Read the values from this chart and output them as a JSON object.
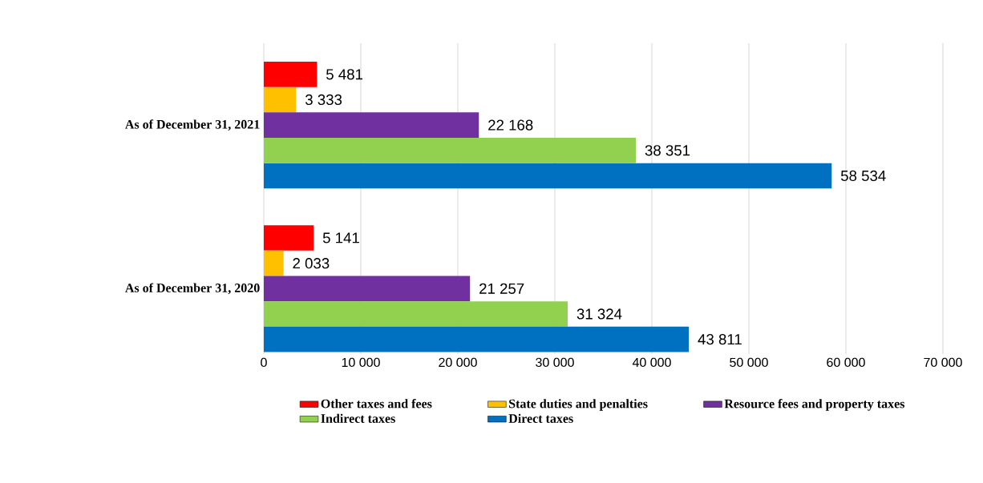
{
  "chart_data": {
    "type": "bar",
    "orientation": "horizontal",
    "categories": [
      "As of December 31, 2021",
      "As of December 31, 2020"
    ],
    "series": [
      {
        "name": "Other taxes and fees",
        "color": "#ff0000",
        "values": [
          5481,
          5141
        ],
        "value_labels": [
          "5 481",
          "5 141"
        ]
      },
      {
        "name": "State duties and penalties",
        "color": "#ffc000",
        "values": [
          3333,
          2033
        ],
        "value_labels": [
          "3 333",
          "2 033"
        ]
      },
      {
        "name": "Resource fees and property taxes",
        "color": "#7030a0",
        "values": [
          22168,
          21257
        ],
        "value_labels": [
          "22 168",
          "21 257"
        ]
      },
      {
        "name": "Indirect taxes",
        "color": "#92d050",
        "values": [
          38351,
          31324
        ],
        "value_labels": [
          "38 351",
          "31 324"
        ]
      },
      {
        "name": "Direct taxes",
        "color": "#0070c0",
        "values": [
          58534,
          43811
        ],
        "value_labels": [
          "58 534",
          "43 811"
        ]
      }
    ],
    "xlim": [
      0,
      70000
    ],
    "xticks": [
      0,
      {
        "value": 10000,
        "label": "10 000"
      },
      {
        "value": 20000,
        "label": "20 000"
      },
      {
        "value": 30000,
        "label": "30 000"
      },
      {
        "value": 40000,
        "label": "40 000"
      },
      {
        "value": 50000,
        "label": "50 000"
      },
      {
        "value": 60000,
        "label": "60 000"
      },
      {
        "value": 70000,
        "label": "70 000"
      }
    ],
    "grid": "x",
    "legend": "bottom"
  }
}
